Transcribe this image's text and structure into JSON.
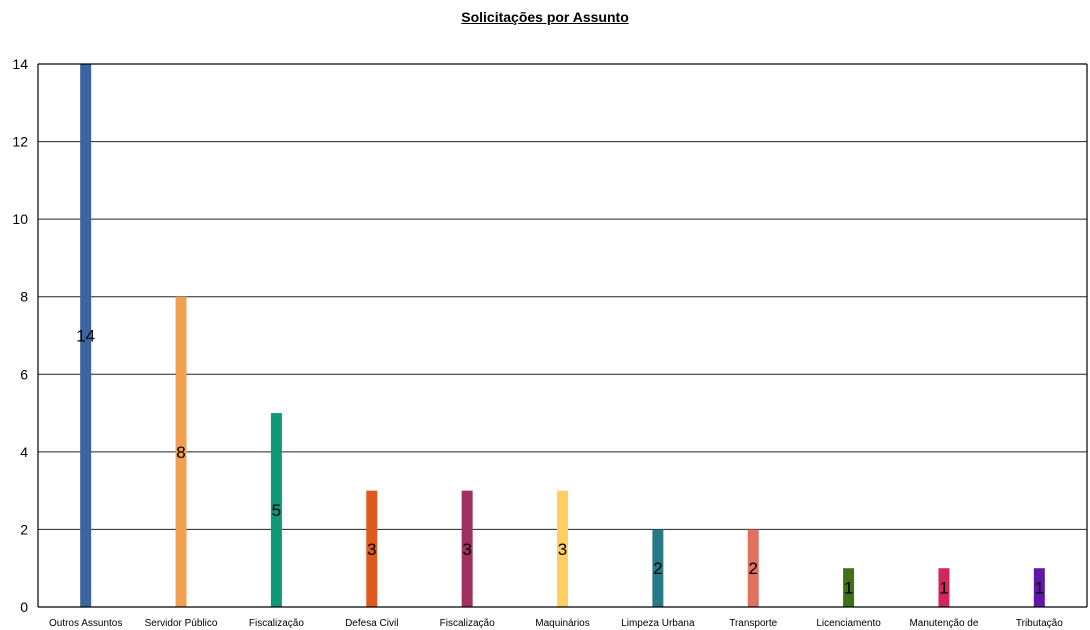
{
  "chart_data": {
    "type": "bar",
    "title": "Solicitações por Assunto",
    "xlabel": "",
    "ylabel": "",
    "categories": [
      "Outros Assuntos",
      "Servidor Público",
      "Fiscalização",
      "Defesa Civil",
      "Fiscalização",
      "Maquinários",
      "Limpeza Urbana",
      "Transporte",
      "Licenciamento",
      "Manutenção de",
      "Tributação"
    ],
    "values": [
      14,
      8,
      5,
      3,
      3,
      3,
      2,
      2,
      1,
      1,
      1
    ],
    "colors": [
      "#3b64a0",
      "#f0a050",
      "#109878",
      "#e05a20",
      "#a03060",
      "#ffd060",
      "#287888",
      "#e07060",
      "#407018",
      "#d02858",
      "#6018a8"
    ],
    "ylim": [
      0,
      14
    ],
    "yticks": [
      0,
      2,
      4,
      6,
      8,
      10,
      12,
      14
    ],
    "grid": true,
    "legend": "none",
    "data_labels": true
  }
}
